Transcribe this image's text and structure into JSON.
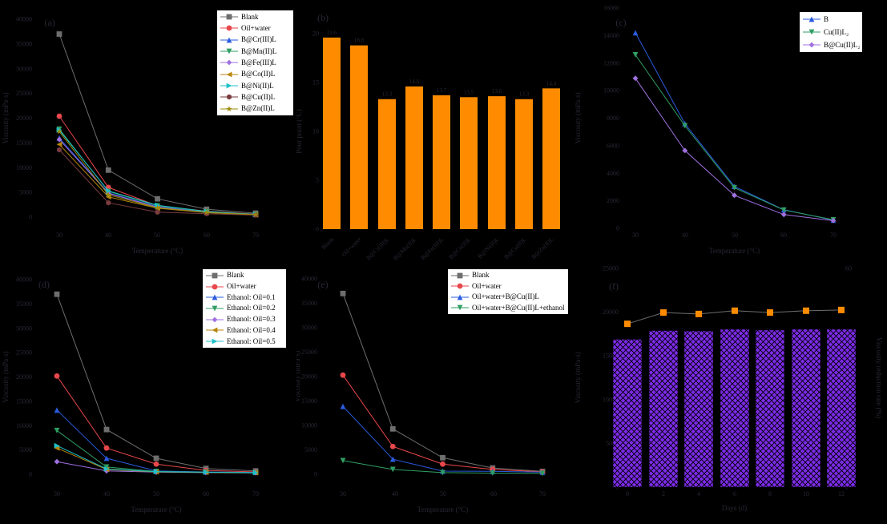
{
  "figure": {
    "background": "#000000",
    "muted_text_color": "#282836",
    "legend_bg": "#ffffff",
    "legend_border": "#000000",
    "legend_text": "#000000"
  },
  "chart_data": [
    {
      "id": "a",
      "type": "line",
      "panel_label": "(a)",
      "xlabel": "Temperature (°C)",
      "ylabel": "Viscosity (mPa·s)",
      "x": [
        30,
        40,
        50,
        60,
        70
      ],
      "xlim": [
        30,
        70
      ],
      "ylim": [
        0,
        40000
      ],
      "yticks": [
        0,
        5000,
        10000,
        15000,
        20000,
        25000,
        30000,
        35000,
        40000
      ],
      "grid": false,
      "legend_position": "inside top-right",
      "series": [
        {
          "name": "Blank",
          "color": "#6e6e6e",
          "marker": "square",
          "values": [
            37000,
            9500,
            3700,
            1600,
            800
          ]
        },
        {
          "name": "Oil+water",
          "color": "#e8474b",
          "marker": "circle",
          "values": [
            20400,
            6000,
            2300,
            1200,
            600
          ]
        },
        {
          "name": "B@Cr(III)L",
          "color": "#2a5ce0",
          "marker": "triangle-up",
          "values": [
            16000,
            4900,
            2100,
            1000,
            500
          ]
        },
        {
          "name": "B@Mn(II)L",
          "color": "#2f9e63",
          "marker": "triangle-down",
          "values": [
            17800,
            5200,
            2300,
            1100,
            550
          ]
        },
        {
          "name": "B@Fe(III)L",
          "color": "#a070e0",
          "marker": "diamond",
          "values": [
            15700,
            4800,
            2000,
            950,
            500
          ]
        },
        {
          "name": "B@Co(II)L",
          "color": "#b8860b",
          "marker": "triangle-left",
          "values": [
            14700,
            4100,
            1800,
            900,
            450
          ]
        },
        {
          "name": "B@Ni(II)L",
          "color": "#20c0c8",
          "marker": "triangle-right",
          "values": [
            17600,
            5300,
            2400,
            1150,
            550
          ]
        },
        {
          "name": "B@Cu(II)L",
          "color": "#7a3b3f",
          "marker": "hexagon",
          "values": [
            13600,
            2900,
            1000,
            700,
            400
          ]
        },
        {
          "name": "B@Zn(II)L",
          "color": "#9b8b0a",
          "marker": "star",
          "values": [
            17300,
            4500,
            1900,
            950,
            500
          ]
        }
      ]
    },
    {
      "id": "b",
      "type": "bar",
      "panel_label": "(b)",
      "xlabel": "",
      "ylabel": "Pour point (°C)",
      "categories": [
        "Blank",
        "Oil+water",
        "B@Cr(III)L",
        "B@Mn(II)L",
        "B@Fe(III)L",
        "B@Co(II)L",
        "B@Ni(II)L",
        "B@Cu(II)L",
        "B@Zn(II)L"
      ],
      "values": [
        19.6,
        18.8,
        13.3,
        14.6,
        13.7,
        13.5,
        13.6,
        13.3,
        14.4
      ],
      "bar_labels": [
        "19.6",
        "18.8",
        "13.3",
        "14.6",
        "13.7",
        "13.5",
        "13.6",
        "13.3",
        "14.4"
      ],
      "bar_color": "#ff8c00",
      "ylim": [
        0,
        20
      ],
      "yticks": [
        0,
        5,
        10,
        15,
        20
      ],
      "grid": false
    },
    {
      "id": "c",
      "type": "line",
      "panel_label": "(c)",
      "xlabel": "Temperature (°C)",
      "ylabel": "Viscosity (mPa·s)",
      "x": [
        30,
        40,
        50,
        60,
        70
      ],
      "xlim": [
        30,
        70
      ],
      "ylim": [
        0,
        16000
      ],
      "yticks": [
        0,
        2000,
        4000,
        6000,
        8000,
        10000,
        12000,
        14000,
        16000
      ],
      "grid": false,
      "legend_position": "inside top-right",
      "series": [
        {
          "name": "B",
          "color": "#2a5ce0",
          "marker": "triangle-up",
          "values": [
            14200,
            7600,
            3050,
            1350,
            600
          ]
        },
        {
          "name": "Cu(II)L₂",
          "color": "#2f9e63",
          "marker": "triangle-down",
          "values": [
            12600,
            7450,
            2950,
            1330,
            620
          ]
        },
        {
          "name": "B@Cu(II)L₂",
          "color": "#a070e0",
          "marker": "diamond",
          "values": [
            10900,
            5650,
            2400,
            1000,
            560
          ]
        }
      ]
    },
    {
      "id": "d",
      "type": "line",
      "panel_label": "(d)",
      "xlabel": "Temperature (°C)",
      "ylabel": "Viscosity (mPa·s)",
      "x": [
        30,
        40,
        50,
        60,
        70
      ],
      "xlim": [
        30,
        70
      ],
      "ylim": [
        0,
        40000
      ],
      "yticks": [
        0,
        5000,
        10000,
        15000,
        20000,
        25000,
        30000,
        35000,
        40000
      ],
      "grid": false,
      "legend_position": "inside top-right",
      "series": [
        {
          "name": "Blank",
          "color": "#6e6e6e",
          "marker": "square",
          "values": [
            37000,
            9200,
            3300,
            1200,
            700
          ]
        },
        {
          "name": "Oil+water",
          "color": "#e8474b",
          "marker": "circle",
          "values": [
            20200,
            5400,
            2100,
            800,
            500
          ]
        },
        {
          "name": "Ethanol: Oil=0.1",
          "color": "#2a5ce0",
          "marker": "triangle-up",
          "values": [
            13200,
            3300,
            700,
            500,
            400
          ]
        },
        {
          "name": "Ethanol: Oil=0.2",
          "color": "#2f9e63",
          "marker": "triangle-down",
          "values": [
            9000,
            1500,
            600,
            450,
            350
          ]
        },
        {
          "name": "Ethanol: Oil=0.3",
          "color": "#a070e0",
          "marker": "diamond",
          "values": [
            2600,
            700,
            450,
            350,
            300
          ]
        },
        {
          "name": "Ethanol: Oil=0.4",
          "color": "#b8860b",
          "marker": "triangle-left",
          "values": [
            5400,
            1000,
            500,
            400,
            320
          ]
        },
        {
          "name": "Ethanol: Oil=0.5",
          "color": "#20c0c8",
          "marker": "triangle-right",
          "values": [
            5900,
            1100,
            550,
            420,
            330
          ]
        }
      ]
    },
    {
      "id": "e",
      "type": "line",
      "panel_label": "(e)",
      "xlabel": "Temperature (°C)",
      "ylabel": "Viscosity (mPa·s)",
      "x": [
        30,
        40,
        50,
        60,
        70
      ],
      "xlim": [
        30,
        70
      ],
      "ylim": [
        0,
        40000
      ],
      "yticks": [
        0,
        5000,
        10000,
        15000,
        20000,
        25000,
        30000,
        35000,
        40000
      ],
      "grid": false,
      "legend_position": "inside top-right",
      "series": [
        {
          "name": "Blank",
          "color": "#6e6e6e",
          "marker": "square",
          "values": [
            37000,
            9300,
            3400,
            1300,
            600
          ]
        },
        {
          "name": "Oil+water",
          "color": "#e8474b",
          "marker": "circle",
          "values": [
            20300,
            5700,
            2100,
            1000,
            500
          ]
        },
        {
          "name": "Oil+water+B@Cu(II)L",
          "color": "#2a5ce0",
          "marker": "triangle-up",
          "values": [
            13900,
            3100,
            650,
            600,
            450
          ]
        },
        {
          "name": "Oil+water+B@Cu(II)L+ethanol",
          "color": "#2f9e63",
          "marker": "triangle-down",
          "values": [
            2800,
            1000,
            350,
            250,
            200
          ]
        }
      ]
    },
    {
      "id": "f",
      "type": "bar-line",
      "panel_label": "(f)",
      "xlabel": "Days (d)",
      "ylabel": "Viscosity (mPa·s)",
      "y2label": "Viscosity reduction rate (%)",
      "categories": [
        0,
        2,
        4,
        6,
        8,
        10,
        12
      ],
      "bars": {
        "name": "viscosity",
        "color": "#7c2be8",
        "pattern": "crosshatch",
        "values": [
          16900,
          17900,
          17850,
          18050,
          17950,
          18050,
          18050
        ]
      },
      "line": {
        "name": "viscosity reduction rate",
        "color": "#6e6e6e",
        "marker": "square",
        "marker_color": "#ff8c00",
        "values": [
          44.8,
          47.9,
          47.5,
          48.4,
          47.9,
          48.4,
          48.6
        ]
      },
      "ylim": [
        0,
        25000
      ],
      "yticks": [
        0,
        5000,
        10000,
        15000,
        20000,
        25000
      ],
      "y2lim": [
        0,
        60
      ],
      "y2ticks": [
        0,
        20,
        40,
        60
      ],
      "grid": false
    }
  ]
}
